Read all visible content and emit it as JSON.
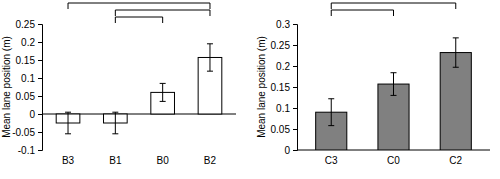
{
  "chart_data": [
    {
      "type": "bar",
      "y_label": "Mean lane position (m)",
      "categories": [
        "B3",
        "B1",
        "B0",
        "B2"
      ],
      "values": [
        -0.025,
        -0.025,
        0.06,
        0.157
      ],
      "errors": [
        0.03,
        0.03,
        0.025,
        0.038
      ],
      "color": "#ffffff",
      "ylim": [
        -0.1,
        0.25
      ],
      "yticks": [
        -0.1,
        -0.05,
        0,
        0.05,
        0.1,
        0.15,
        0.2,
        0.25
      ],
      "brackets": [
        [
          0,
          3
        ],
        [
          1,
          3
        ],
        [
          1,
          2
        ]
      ]
    },
    {
      "type": "bar",
      "y_label": "Mean lane position (m)",
      "categories": [
        "C3",
        "C0",
        "C2"
      ],
      "values": [
        0.09,
        0.157,
        0.232
      ],
      "errors": [
        0.032,
        0.027,
        0.035
      ],
      "color": "#808080",
      "ylim": [
        0,
        0.3
      ],
      "yticks": [
        0,
        0.05,
        0.1,
        0.15,
        0.2,
        0.25,
        0.3
      ],
      "brackets": [
        [
          0,
          2
        ],
        [
          0,
          1
        ]
      ]
    }
  ]
}
